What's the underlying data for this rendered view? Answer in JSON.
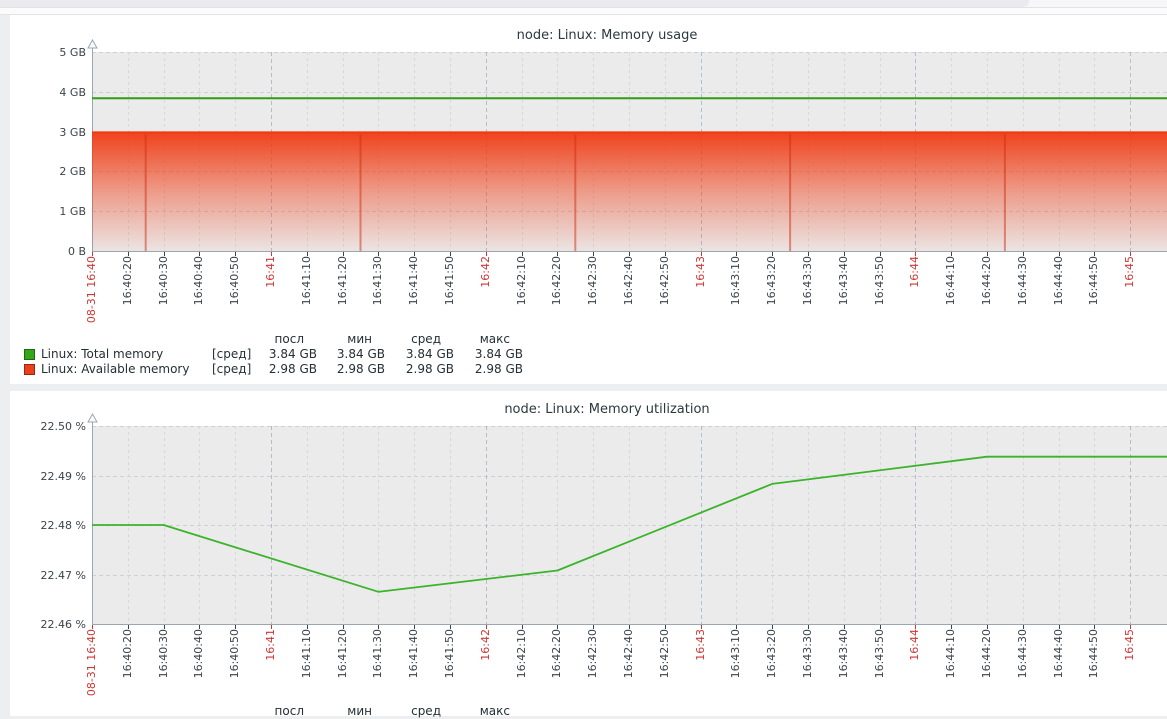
{
  "legend_headers": [
    "посл",
    "мин",
    "сред",
    "макс"
  ],
  "x_tick_labels": [
    "08-31 16:40",
    "16:40:20",
    "16:40:30",
    "16:40:40",
    "16:40:50",
    "16:41",
    "16:41:10",
    "16:41:20",
    "16:41:30",
    "16:41:40",
    "16:41:50",
    "16:42",
    "16:42:10",
    "16:42:20",
    "16:42:30",
    "16:42:40",
    "16:42:50",
    "16:43",
    "16:43:10",
    "16:43:20",
    "16:43:30",
    "16:43:40",
    "16:43:50",
    "16:44",
    "16:44:10",
    "16:44:20",
    "16:44:30",
    "16:44:40",
    "16:44:50",
    "16:45"
  ],
  "colors": {
    "total_memory_line": "#2f9d15",
    "available_memory_line": "#f03a12",
    "utilization_line": "#3bb32a",
    "minute_label_red": "#cd3734",
    "plot_background": "#ebebeb",
    "axis_gray": "#9aa7b0"
  },
  "chart_data": [
    {
      "type": "area",
      "title": "node: Linux: Memory usage",
      "ylim": [
        0,
        5
      ],
      "yticks": [
        {
          "v": 5,
          "label": "5 GB"
        },
        {
          "v": 4,
          "label": "4 GB"
        },
        {
          "v": 3,
          "label": "3 GB"
        },
        {
          "v": 2,
          "label": "2 GB"
        },
        {
          "v": 1,
          "label": "1 GB"
        },
        {
          "v": 0,
          "label": "0 B"
        }
      ],
      "x_tick_labels": [
        "08-31 16:40",
        "16:40:20",
        "16:40:30",
        "16:40:40",
        "16:40:50",
        "16:41",
        "16:41:10",
        "16:41:20",
        "16:41:30",
        "16:41:40",
        "16:41:50",
        "16:42",
        "16:42:10",
        "16:42:20",
        "16:42:30",
        "16:42:40",
        "16:42:50",
        "16:43",
        "16:43:10",
        "16:43:20",
        "16:43:30",
        "16:43:40",
        "16:43:50",
        "16:44",
        "16:44:10",
        "16:44:20",
        "16:44:30",
        "16:44:40",
        "16:44:50",
        "16:45"
      ],
      "series": [
        {
          "name": "Linux: Total memory",
          "draw": "line",
          "color": "#2f9d15",
          "points": [
            [
              0,
              3.84
            ],
            [
              301,
              3.84
            ]
          ]
        },
        {
          "name": "Linux: Available memory",
          "draw": "gradient-area",
          "color": "#f03a12",
          "points": [
            [
              0,
              2.98
            ],
            [
              301,
              2.98
            ]
          ],
          "gap_streak_seconds": [
            15,
            75,
            135,
            195,
            255
          ]
        }
      ],
      "legend": {
        "headers": [
          "посл",
          "мин",
          "сред",
          "макс"
        ],
        "rows": [
          {
            "swatch": "#33a718",
            "name": "Linux: Total memory",
            "agg": "[сред]",
            "values": [
              "3.84 GB",
              "3.84 GB",
              "3.84 GB",
              "3.84 GB"
            ]
          },
          {
            "swatch": "#ee3f1c",
            "name": "Linux: Available memory",
            "agg": "[сред]",
            "values": [
              "2.98 GB",
              "2.98 GB",
              "2.98 GB",
              "2.98 GB"
            ]
          }
        ]
      }
    },
    {
      "type": "line",
      "title": "node: Linux: Memory utilization",
      "ylim": [
        22.46,
        22.5
      ],
      "yticks": [
        {
          "v": 22.5,
          "label": "22.50 %"
        },
        {
          "v": 22.49,
          "label": "22.49 %"
        },
        {
          "v": 22.48,
          "label": "22.48 %"
        },
        {
          "v": 22.47,
          "label": "22.47 %"
        },
        {
          "v": 22.46,
          "label": "22.46 %"
        }
      ],
      "x_tick_labels": [
        "08-31 16:40",
        "16:40:20",
        "16:40:30",
        "16:40:40",
        "16:40:50",
        "16:41",
        "16:41:10",
        "16:41:20",
        "16:41:30",
        "16:41:40",
        "16:41:50",
        "16:42",
        "16:42:10",
        "16:42:20",
        "16:42:30",
        "16:42:40",
        "16:42:50",
        "16:43",
        "16:43:10",
        "16:43:20",
        "16:43:30",
        "16:43:40",
        "16:43:50",
        "16:44",
        "16:44:10",
        "16:44:20",
        "16:44:30",
        "16:44:40",
        "16:44:50",
        "16:45"
      ],
      "series": [
        {
          "name": "Linux: Memory utilization",
          "draw": "line",
          "color": "#3bb32a",
          "points": [
            [
              0,
              22.48
            ],
            [
              20,
              22.48
            ],
            [
              80,
              22.4665
            ],
            [
              130,
              22.4708
            ],
            [
              190,
              22.4883
            ],
            [
              250,
              22.4938
            ],
            [
              301,
              22.4938
            ]
          ]
        }
      ],
      "legend": {
        "headers": [
          "посл",
          "мин",
          "сред",
          "макс"
        ],
        "rows": []
      }
    }
  ]
}
